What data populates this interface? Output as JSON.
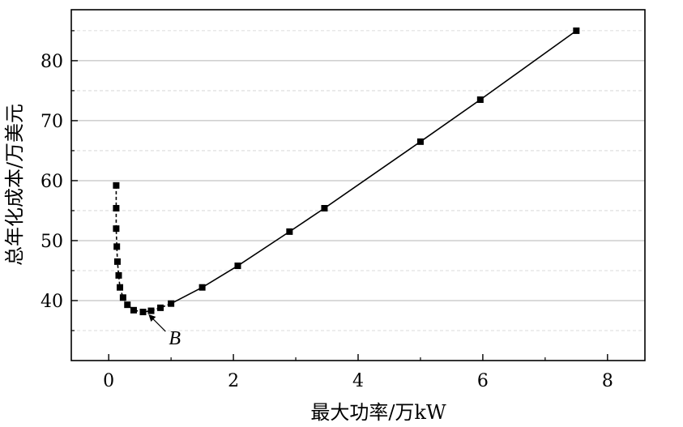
{
  "chart_data": {
    "type": "line",
    "title": "",
    "xlabel": "最大功率/万kW",
    "ylabel": "总年化成本/万美元",
    "xlim": [
      -0.6,
      8.6
    ],
    "ylim": [
      30,
      88.5
    ],
    "xticks": [
      0,
      2,
      4,
      6,
      8
    ],
    "yticks": [
      40,
      50,
      60,
      70,
      80
    ],
    "xtick_labels": [
      "0",
      "2",
      "4",
      "6",
      "8"
    ],
    "ytick_labels": [
      "40",
      "50",
      "60",
      "70",
      "80"
    ],
    "grid": {
      "major_y": true,
      "minor_y": true,
      "x": false
    },
    "series": [
      {
        "name": "",
        "marker": "square",
        "color": "#000000",
        "segments": [
          {
            "style": "dashed",
            "x": [
              0.12,
              0.12,
              0.12,
              0.13,
              0.14,
              0.16,
              0.18,
              0.23,
              0.3,
              0.4,
              0.55,
              0.68,
              0.83,
              1.0
            ],
            "y": [
              59.2,
              55.4,
              52.0,
              49.0,
              46.5,
              44.2,
              42.2,
              40.5,
              39.3,
              38.4,
              38.1,
              38.3,
              38.8,
              39.5
            ]
          },
          {
            "style": "solid",
            "x": [
              1.0,
              1.5,
              2.07,
              2.9,
              3.46,
              5.0,
              5.96,
              7.5
            ],
            "y": [
              39.5,
              42.2,
              45.8,
              51.5,
              55.4,
              66.5,
              73.5,
              85.0
            ]
          }
        ]
      }
    ],
    "annotations": [
      {
        "text": "B",
        "x": 0.6,
        "y": 38.1
      }
    ]
  }
}
